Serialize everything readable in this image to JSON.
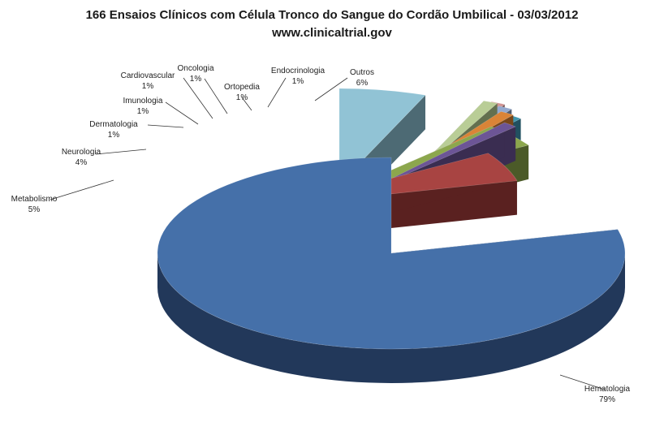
{
  "chart_data": {
    "type": "pie",
    "title": "166 Ensaios Clínicos com Célula Tronco do Sangue do Cordão Umbilical - 03/03/2012",
    "subtitle": "www.clinicaltrial.gov",
    "three_d": true,
    "exploded": true,
    "slices": [
      {
        "label": "Hematologia",
        "value": 79,
        "value_label": "79%",
        "color": "#4570A9",
        "dark": "#22385A"
      },
      {
        "label": "Metabolismo",
        "value": 5,
        "value_label": "5%",
        "color": "#A84442",
        "dark": "#5A2120"
      },
      {
        "label": "Neurologia",
        "value": 4,
        "value_label": "4%",
        "color": "#8CA74D",
        "dark": "#4B5A28"
      },
      {
        "label": "Dermatologia",
        "value": 1,
        "value_label": "1%",
        "color": "#6C5596",
        "dark": "#3A2D51"
      },
      {
        "label": "Imunologia",
        "value": 1,
        "value_label": "1%",
        "color": "#4096AE",
        "dark": "#215060"
      },
      {
        "label": "Cardiovascular",
        "value": 1,
        "value_label": "1%",
        "color": "#DA8437",
        "dark": "#784619"
      },
      {
        "label": "Oncologia",
        "value": 1,
        "value_label": "1%",
        "color": "#93A9CF",
        "dark": "#4E5B70"
      },
      {
        "label": "Ortopedia",
        "value": 1,
        "value_label": "1%",
        "color": "#D09392",
        "dark": "#704C4B"
      },
      {
        "label": "Endocrinologia",
        "value": 1,
        "value_label": "1%",
        "color": "#B9CD96",
        "dark": "#63704F"
      },
      {
        "label": "Outros",
        "value": 6,
        "value_label": "6%",
        "color": "#91C3D5",
        "dark": "#4D6A74"
      }
    ]
  }
}
